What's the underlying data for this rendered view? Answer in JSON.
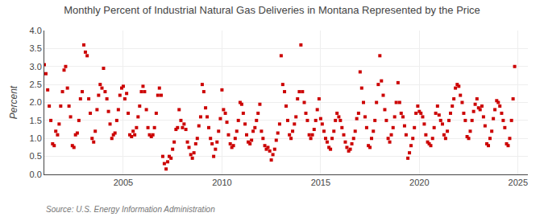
{
  "chart_data": {
    "type": "scatter",
    "title": "Monthly Percent of Industrial Natural Gas Deliveries in Montana Represented by the Price",
    "ylabel": "Percent",
    "annotations": [
      "Source: U.S. Energy Information Administration"
    ],
    "color": "#cc0000",
    "marker": "square",
    "grid": true,
    "xlim": [
      2001,
      2025.5
    ],
    "xticks": [
      2005,
      2010,
      2015,
      2020,
      2025
    ],
    "ylim": [
      0.0,
      4.0
    ],
    "yticks": [
      {
        "value": 0.0,
        "label": "0.0"
      },
      0.5,
      {
        "value": 1.0,
        "label": "1.0"
      },
      1.5,
      {
        "value": 2.0,
        "label": "2.0"
      },
      2.5,
      {
        "value": 3.0,
        "label": "3.0"
      },
      3.5,
      {
        "value": 4.0,
        "label": "4.0"
      }
    ],
    "x": [
      2001.0,
      2001.08,
      2001.17,
      2001.25,
      2001.33,
      2001.42,
      2001.5,
      2001.58,
      2001.67,
      2001.75,
      2001.83,
      2001.92,
      2002.0,
      2002.08,
      2002.17,
      2002.25,
      2002.33,
      2002.42,
      2002.5,
      2002.58,
      2002.67,
      2002.75,
      2002.83,
      2002.92,
      2003.0,
      2003.08,
      2003.17,
      2003.25,
      2003.33,
      2003.42,
      2003.5,
      2003.58,
      2003.67,
      2003.75,
      2003.83,
      2003.92,
      2004.0,
      2004.08,
      2004.17,
      2004.25,
      2004.33,
      2004.42,
      2004.5,
      2004.58,
      2004.67,
      2004.75,
      2004.83,
      2004.92,
      2005.0,
      2005.08,
      2005.17,
      2005.25,
      2005.33,
      2005.42,
      2005.5,
      2005.58,
      2005.67,
      2005.75,
      2005.83,
      2005.92,
      2006.0,
      2006.08,
      2006.17,
      2006.25,
      2006.33,
      2006.42,
      2006.5,
      2006.58,
      2006.67,
      2006.75,
      2006.83,
      2006.92,
      2007.0,
      2007.08,
      2007.17,
      2007.25,
      2007.33,
      2007.42,
      2007.5,
      2007.58,
      2007.67,
      2007.75,
      2007.83,
      2007.92,
      2008.0,
      2008.08,
      2008.17,
      2008.25,
      2008.33,
      2008.42,
      2008.5,
      2008.58,
      2008.67,
      2008.75,
      2008.83,
      2008.92,
      2009.0,
      2009.08,
      2009.17,
      2009.25,
      2009.33,
      2009.42,
      2009.5,
      2009.58,
      2009.67,
      2009.75,
      2009.83,
      2009.92,
      2010.0,
      2010.08,
      2010.17,
      2010.25,
      2010.33,
      2010.42,
      2010.5,
      2010.58,
      2010.67,
      2010.75,
      2010.83,
      2010.92,
      2011.0,
      2011.08,
      2011.17,
      2011.25,
      2011.33,
      2011.42,
      2011.5,
      2011.58,
      2011.67,
      2011.75,
      2011.83,
      2011.92,
      2012.0,
      2012.08,
      2012.17,
      2012.25,
      2012.33,
      2012.42,
      2012.5,
      2012.58,
      2012.67,
      2012.75,
      2012.83,
      2012.92,
      2013.0,
      2013.08,
      2013.17,
      2013.25,
      2013.33,
      2013.42,
      2013.5,
      2013.58,
      2013.67,
      2013.75,
      2013.83,
      2013.92,
      2014.0,
      2014.08,
      2014.17,
      2014.25,
      2014.33,
      2014.42,
      2014.5,
      2014.58,
      2014.67,
      2014.75,
      2014.83,
      2014.92,
      2015.0,
      2015.08,
      2015.17,
      2015.25,
      2015.33,
      2015.42,
      2015.5,
      2015.58,
      2015.67,
      2015.75,
      2015.83,
      2015.92,
      2016.0,
      2016.08,
      2016.17,
      2016.25,
      2016.33,
      2016.42,
      2016.5,
      2016.58,
      2016.67,
      2016.75,
      2016.83,
      2016.92,
      2017.0,
      2017.08,
      2017.17,
      2017.25,
      2017.33,
      2017.42,
      2017.5,
      2017.58,
      2017.67,
      2017.75,
      2017.83,
      2017.92,
      2018.0,
      2018.08,
      2018.17,
      2018.25,
      2018.33,
      2018.42,
      2018.5,
      2018.58,
      2018.67,
      2018.75,
      2018.83,
      2018.92,
      2019.0,
      2019.08,
      2019.17,
      2019.25,
      2019.33,
      2019.42,
      2019.5,
      2019.58,
      2019.67,
      2019.75,
      2019.83,
      2019.92,
      2020.0,
      2020.08,
      2020.17,
      2020.25,
      2020.33,
      2020.42,
      2020.5,
      2020.58,
      2020.67,
      2020.75,
      2020.83,
      2020.92,
      2021.0,
      2021.08,
      2021.17,
      2021.25,
      2021.33,
      2021.42,
      2021.5,
      2021.58,
      2021.67,
      2021.75,
      2021.83,
      2021.92,
      2022.0,
      2022.08,
      2022.17,
      2022.25,
      2022.33,
      2022.42,
      2022.5,
      2022.58,
      2022.67,
      2022.75,
      2022.83,
      2022.92,
      2023.0,
      2023.08,
      2023.17,
      2023.25,
      2023.33,
      2023.42,
      2023.5,
      2023.58,
      2023.67,
      2023.75,
      2023.83,
      2023.92,
      2024.0,
      2024.08,
      2024.17,
      2024.25,
      2024.33,
      2024.42,
      2024.5,
      2024.58,
      2024.67,
      2024.75,
      2024.83
    ],
    "values": [
      3.05,
      2.8,
      2.35,
      1.9,
      1.5,
      0.85,
      0.8,
      1.2,
      1.1,
      1.4,
      1.9,
      2.3,
      2.9,
      3.0,
      2.4,
      1.9,
      1.6,
      0.8,
      0.75,
      1.1,
      1.15,
      1.5,
      2.1,
      2.3,
      3.6,
      3.4,
      3.3,
      2.1,
      1.7,
      1.0,
      0.9,
      1.2,
      1.8,
      2.2,
      2.5,
      2.4,
      2.95,
      2.3,
      2.1,
      1.75,
      1.4,
      1.0,
      1.1,
      1.15,
      1.5,
      1.8,
      2.2,
      2.4,
      2.45,
      2.1,
      2.25,
      1.7,
      1.1,
      1.05,
      1.2,
      1.1,
      1.3,
      1.6,
      1.9,
      2.3,
      2.45,
      2.3,
      1.8,
      1.3,
      1.1,
      1.05,
      1.1,
      1.3,
      1.7,
      2.2,
      2.4,
      2.2,
      0.5,
      0.3,
      0.15,
      0.35,
      0.5,
      0.45,
      0.7,
      0.9,
      1.25,
      1.3,
      1.8,
      1.5,
      1.3,
      1.4,
      1.25,
      0.9,
      0.75,
      0.55,
      0.45,
      0.6,
      0.85,
      1.0,
      1.35,
      1.6,
      2.5,
      2.3,
      1.85,
      1.6,
      1.3,
      1.0,
      0.85,
      0.5,
      0.7,
      0.9,
      1.2,
      1.55,
      2.35,
      1.8,
      1.7,
      1.45,
      1.1,
      0.85,
      0.75,
      0.8,
      1.0,
      1.2,
      1.5,
      2.0,
      1.95,
      1.7,
      1.4,
      1.1,
      0.9,
      0.85,
      0.95,
      1.2,
      1.3,
      1.5,
      1.7,
      1.95,
      1.2,
      1.0,
      0.8,
      0.7,
      0.75,
      0.65,
      0.4,
      0.55,
      0.7,
      0.95,
      1.15,
      1.4,
      3.3,
      2.5,
      2.3,
      1.9,
      1.5,
      1.1,
      1.0,
      1.2,
      1.4,
      1.6,
      2.1,
      2.3,
      3.6,
      2.3,
      2.0,
      1.7,
      1.5,
      1.1,
      1.0,
      1.1,
      1.25,
      1.5,
      1.8,
      2.1,
      1.55,
      1.4,
      1.2,
      1.0,
      0.9,
      0.75,
      0.7,
      1.0,
      1.2,
      1.5,
      1.7,
      1.6,
      1.5,
      1.3,
      1.1,
      0.9,
      0.75,
      0.65,
      0.7,
      0.85,
      1.0,
      1.2,
      1.55,
      1.7,
      2.85,
      2.4,
      2.0,
      1.6,
      1.3,
      0.8,
      0.75,
      1.0,
      1.2,
      1.5,
      2.0,
      2.5,
      3.3,
      2.6,
      2.2,
      1.8,
      1.5,
      1.0,
      0.9,
      1.1,
      1.3,
      1.6,
      2.0,
      2.55,
      2.0,
      1.7,
      1.6,
      1.35,
      1.1,
      0.45,
      0.6,
      0.8,
      1.0,
      1.3,
      1.7,
      1.9,
      1.75,
      1.7,
      1.6,
      1.4,
      1.1,
      0.9,
      0.85,
      0.8,
      1.0,
      1.3,
      1.7,
      1.9,
      1.65,
      1.5,
      1.4,
      1.1,
      1.0,
      1.2,
      1.5,
      1.7,
      1.9,
      2.1,
      2.4,
      2.5,
      2.45,
      2.2,
      2.0,
      1.7,
      1.5,
      1.05,
      1.0,
      1.2,
      1.5,
      1.75,
      1.95,
      2.1,
      1.85,
      1.8,
      1.9,
      1.6,
      1.35,
      0.85,
      0.8,
      1.0,
      1.2,
      1.55,
      1.8,
      2.05,
      2.0,
      1.9,
      1.7,
      1.5,
      1.3,
      0.85,
      0.8,
      1.0,
      1.5,
      2.1,
      3.0
    ]
  }
}
